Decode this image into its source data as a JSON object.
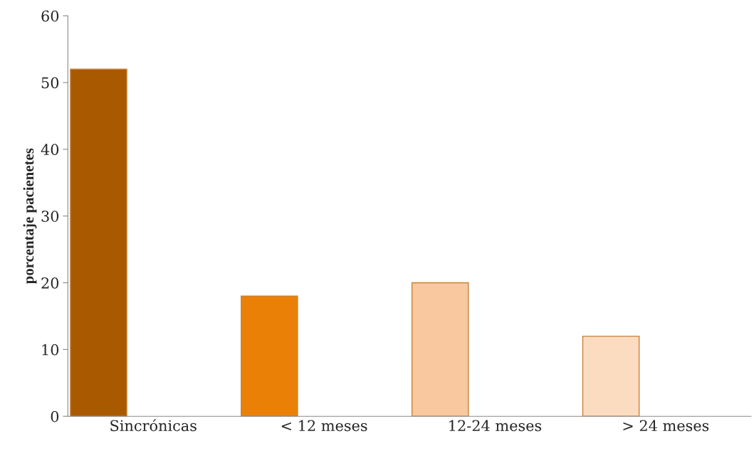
{
  "chart_data": {
    "type": "bar",
    "ylabel": "porcentaje pacienetes",
    "categories": [
      "Sincrónicas",
      "< 12 meses",
      "12-24 meses",
      "> 24 meses"
    ],
    "values": [
      52,
      18,
      20,
      12
    ],
    "colors": [
      "#a95a00",
      "#ea8106",
      "#f9c89f",
      "#fcdcc0"
    ],
    "ylim": [
      0,
      60
    ],
    "yticks": [
      0,
      10,
      20,
      30,
      40,
      50,
      60
    ],
    "grid": false,
    "legend": false
  }
}
